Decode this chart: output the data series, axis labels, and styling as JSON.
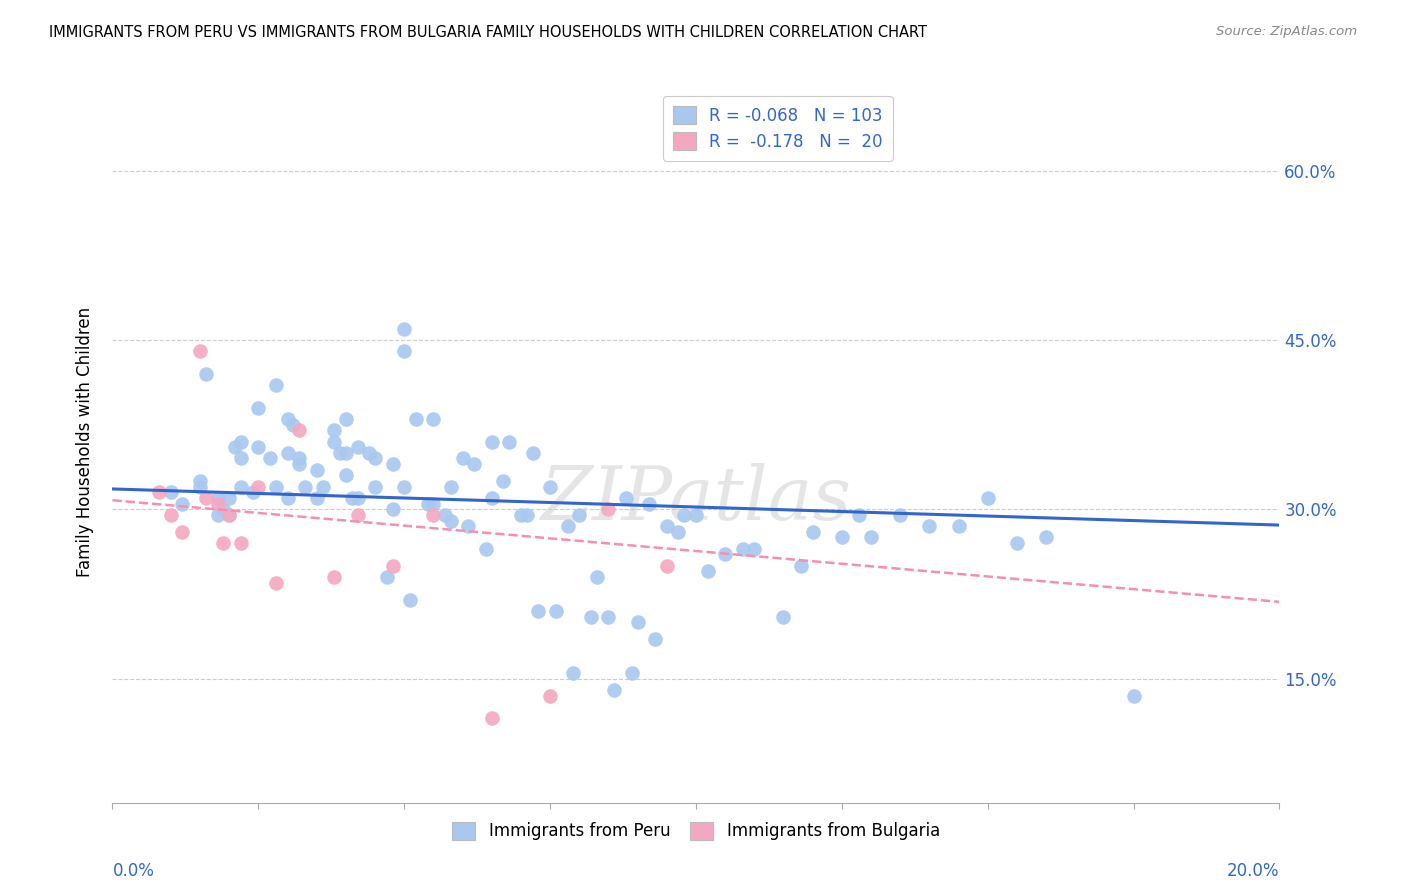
{
  "title": "IMMIGRANTS FROM PERU VS IMMIGRANTS FROM BULGARIA FAMILY HOUSEHOLDS WITH CHILDREN CORRELATION CHART",
  "source": "Source: ZipAtlas.com",
  "ylabel": "Family Households with Children",
  "ytick_values": [
    0.15,
    0.3,
    0.45,
    0.6
  ],
  "ytick_labels": [
    "15.0%",
    "30.0%",
    "45.0%",
    "60.0%"
  ],
  "xlim": [
    0.0,
    0.2
  ],
  "ylim": [
    0.04,
    0.68
  ],
  "peru_color": "#a8c8f0",
  "bulgaria_color": "#f4a8c0",
  "peru_line_color": "#3366cc",
  "bulgaria_line_color": "#f48fb1",
  "watermark": "ZIPatlas",
  "legend_r1": "R = -0.068   N = 103",
  "legend_r2": "R =  -0.178   N =  20",
  "legend_label1": "Immigrants from Peru",
  "legend_label2": "Immigrants from Bulgaria",
  "peru_scatter_x": [
    0.01,
    0.012,
    0.015,
    0.015,
    0.016,
    0.018,
    0.018,
    0.019,
    0.02,
    0.02,
    0.021,
    0.022,
    0.022,
    0.022,
    0.024,
    0.025,
    0.025,
    0.027,
    0.028,
    0.028,
    0.03,
    0.03,
    0.03,
    0.031,
    0.032,
    0.032,
    0.033,
    0.035,
    0.035,
    0.036,
    0.038,
    0.038,
    0.039,
    0.04,
    0.04,
    0.04,
    0.041,
    0.042,
    0.042,
    0.044,
    0.045,
    0.045,
    0.047,
    0.048,
    0.048,
    0.05,
    0.05,
    0.05,
    0.051,
    0.052,
    0.054,
    0.055,
    0.055,
    0.057,
    0.058,
    0.058,
    0.06,
    0.061,
    0.062,
    0.064,
    0.065,
    0.065,
    0.067,
    0.068,
    0.07,
    0.071,
    0.072,
    0.073,
    0.075,
    0.076,
    0.078,
    0.079,
    0.08,
    0.082,
    0.083,
    0.085,
    0.086,
    0.088,
    0.089,
    0.09,
    0.092,
    0.093,
    0.095,
    0.097,
    0.098,
    0.1,
    0.102,
    0.105,
    0.108,
    0.11,
    0.115,
    0.118,
    0.12,
    0.125,
    0.128,
    0.13,
    0.135,
    0.14,
    0.145,
    0.15,
    0.155,
    0.16,
    0.175
  ],
  "peru_scatter_y": [
    0.315,
    0.305,
    0.325,
    0.32,
    0.42,
    0.295,
    0.31,
    0.3,
    0.295,
    0.31,
    0.355,
    0.36,
    0.345,
    0.32,
    0.315,
    0.39,
    0.355,
    0.345,
    0.41,
    0.32,
    0.35,
    0.38,
    0.31,
    0.375,
    0.345,
    0.34,
    0.32,
    0.335,
    0.31,
    0.32,
    0.37,
    0.36,
    0.35,
    0.38,
    0.35,
    0.33,
    0.31,
    0.355,
    0.31,
    0.35,
    0.345,
    0.32,
    0.24,
    0.34,
    0.3,
    0.46,
    0.44,
    0.32,
    0.22,
    0.38,
    0.305,
    0.38,
    0.305,
    0.295,
    0.32,
    0.29,
    0.345,
    0.285,
    0.34,
    0.265,
    0.31,
    0.36,
    0.325,
    0.36,
    0.295,
    0.295,
    0.35,
    0.21,
    0.32,
    0.21,
    0.285,
    0.155,
    0.295,
    0.205,
    0.24,
    0.205,
    0.14,
    0.31,
    0.155,
    0.2,
    0.305,
    0.185,
    0.285,
    0.28,
    0.295,
    0.295,
    0.245,
    0.26,
    0.265,
    0.265,
    0.205,
    0.25,
    0.28,
    0.275,
    0.295,
    0.275,
    0.295,
    0.285,
    0.285,
    0.31,
    0.27,
    0.275,
    0.135
  ],
  "bulgaria_scatter_x": [
    0.008,
    0.01,
    0.012,
    0.015,
    0.016,
    0.018,
    0.019,
    0.02,
    0.022,
    0.025,
    0.028,
    0.032,
    0.038,
    0.042,
    0.048,
    0.055,
    0.065,
    0.075,
    0.085,
    0.095
  ],
  "bulgaria_scatter_y": [
    0.315,
    0.295,
    0.28,
    0.44,
    0.31,
    0.305,
    0.27,
    0.295,
    0.27,
    0.32,
    0.235,
    0.37,
    0.24,
    0.295,
    0.25,
    0.295,
    0.115,
    0.135,
    0.3,
    0.25
  ],
  "peru_trend_x": [
    0.0,
    0.2
  ],
  "peru_trend_y": [
    0.318,
    0.286
  ],
  "bulgaria_trend_x": [
    0.0,
    0.2
  ],
  "bulgaria_trend_y": [
    0.308,
    0.218
  ]
}
